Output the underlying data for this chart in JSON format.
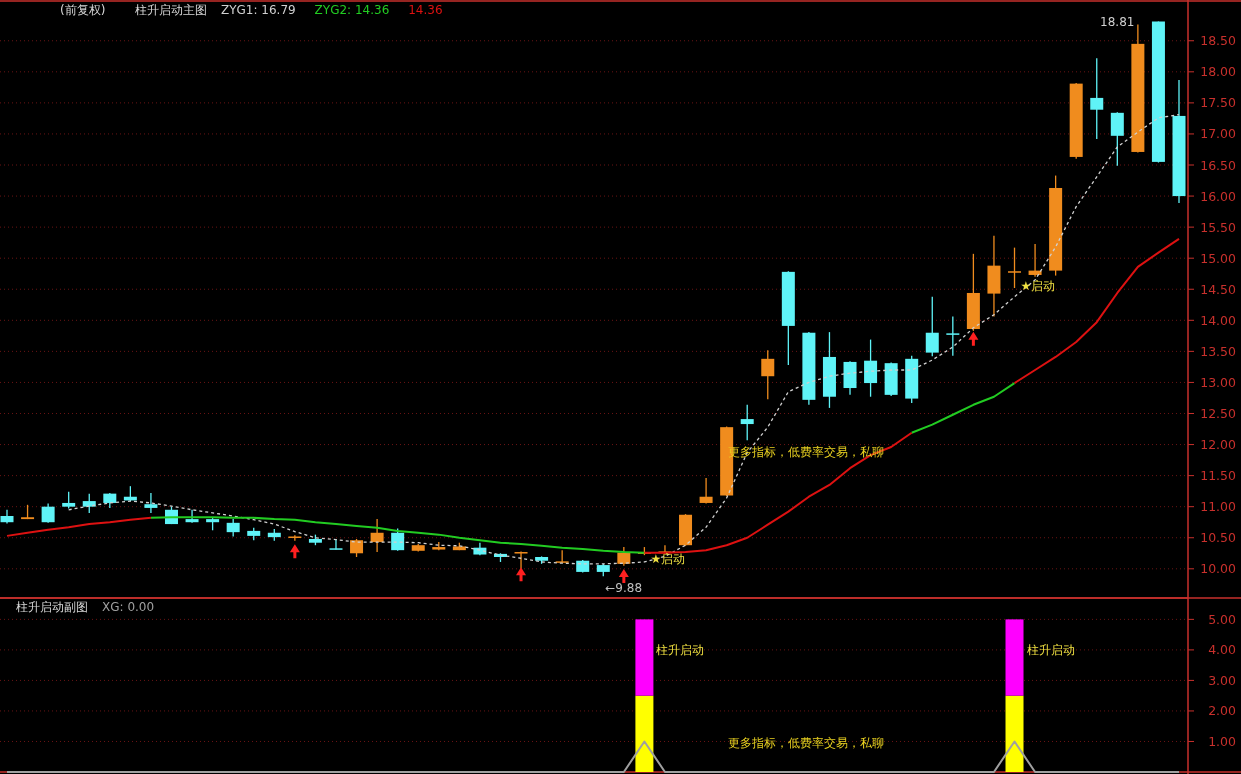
{
  "chart_data": [
    {
      "type": "candlestick",
      "title": "柱升启动主图",
      "subtitle": "(前复权)",
      "categories": [
        null,
        null,
        null,
        null,
        null,
        null,
        null,
        null,
        null,
        null,
        null,
        null,
        null,
        null,
        null,
        null,
        null,
        null,
        null,
        null,
        null,
        null,
        null,
        null,
        null,
        null,
        null,
        null,
        null,
        null,
        null,
        null,
        null,
        null,
        null,
        null,
        null,
        null,
        null,
        null,
        null,
        null,
        null,
        null,
        null,
        null,
        null,
        null,
        null,
        null,
        null,
        null,
        null,
        null,
        null,
        null,
        null,
        null
      ],
      "ohlc": [
        [
          10.85,
          10.95,
          10.73,
          10.75
        ],
        [
          10.8,
          11.03,
          10.8,
          10.83
        ],
        [
          11.0,
          11.05,
          10.74,
          10.75
        ],
        [
          11.06,
          11.24,
          10.97,
          11.0
        ],
        [
          11.09,
          11.21,
          10.9,
          11.0
        ],
        [
          11.21,
          11.22,
          10.98,
          11.06
        ],
        [
          11.16,
          11.33,
          11.09,
          11.1
        ],
        [
          11.04,
          11.22,
          10.9,
          10.98
        ],
        [
          10.95,
          11.0,
          10.72,
          10.72
        ],
        [
          10.8,
          10.95,
          10.74,
          10.75
        ],
        [
          10.8,
          10.82,
          10.62,
          10.75
        ],
        [
          10.74,
          10.8,
          10.52,
          10.59
        ],
        [
          10.61,
          10.66,
          10.46,
          10.53
        ],
        [
          10.58,
          10.64,
          10.45,
          10.51
        ],
        [
          10.5,
          10.54,
          10.45,
          10.52
        ],
        [
          10.48,
          10.55,
          10.38,
          10.42
        ],
        [
          10.33,
          10.48,
          10.31,
          10.32
        ],
        [
          10.25,
          10.48,
          10.19,
          10.46
        ],
        [
          10.43,
          10.8,
          10.27,
          10.58
        ],
        [
          10.58,
          10.65,
          10.29,
          10.3
        ],
        [
          10.29,
          10.4,
          10.28,
          10.38
        ],
        [
          10.31,
          10.43,
          10.3,
          10.35
        ],
        [
          10.3,
          10.42,
          10.3,
          10.36
        ],
        [
          10.34,
          10.42,
          10.22,
          10.23
        ],
        [
          10.24,
          10.25,
          10.11,
          10.19
        ],
        [
          10.25,
          10.28,
          10.0,
          10.27
        ],
        [
          10.19,
          10.2,
          10.08,
          10.13
        ],
        [
          10.1,
          10.3,
          10.1,
          10.12
        ],
        [
          10.13,
          10.14,
          9.94,
          9.95
        ],
        [
          10.06,
          10.08,
          9.88,
          9.95
        ],
        [
          10.08,
          10.35,
          10.05,
          10.26
        ],
        [
          10.24,
          10.35,
          10.22,
          10.27
        ],
        [
          10.25,
          10.38,
          10.24,
          10.28
        ],
        [
          10.38,
          10.88,
          10.37,
          10.87
        ],
        [
          11.06,
          11.46,
          11.05,
          11.16
        ],
        [
          11.18,
          12.29,
          11.17,
          12.28
        ],
        [
          12.41,
          12.64,
          12.07,
          12.33
        ],
        [
          13.1,
          13.52,
          12.73,
          13.38
        ],
        [
          14.78,
          14.79,
          13.28,
          13.91
        ],
        [
          13.8,
          13.81,
          12.64,
          12.72
        ],
        [
          13.41,
          13.81,
          12.59,
          12.77
        ],
        [
          13.33,
          13.34,
          12.8,
          12.91
        ],
        [
          13.35,
          13.69,
          12.77,
          12.99
        ],
        [
          13.31,
          13.32,
          12.78,
          12.8
        ],
        [
          13.38,
          13.43,
          12.67,
          12.74
        ],
        [
          13.8,
          14.38,
          13.42,
          13.48
        ],
        [
          13.79,
          14.06,
          13.43,
          13.77
        ],
        [
          13.86,
          15.07,
          13.83,
          14.44
        ],
        [
          14.43,
          15.36,
          14.06,
          14.88
        ],
        [
          14.77,
          15.17,
          14.52,
          14.79
        ],
        [
          14.73,
          15.23,
          14.7,
          14.8
        ],
        [
          14.8,
          16.33,
          14.72,
          16.13
        ],
        [
          16.63,
          17.82,
          16.6,
          17.81
        ],
        [
          17.58,
          18.22,
          16.92,
          17.39
        ],
        [
          17.34,
          17.35,
          16.49,
          16.97
        ],
        [
          16.71,
          18.76,
          16.7,
          18.45
        ],
        [
          18.81,
          18.81,
          16.54,
          16.55
        ],
        [
          17.29,
          17.87,
          15.89,
          16.0
        ]
      ],
      "colors": [
        "#5ff3f7",
        "#f08c1e",
        "#5ff3f7",
        "#5ff3f7",
        "#5ff3f7",
        "#5ff3f7",
        "#5ff3f7",
        "#5ff3f7",
        "#5ff3f7",
        "#5ff3f7",
        "#5ff3f7",
        "#5ff3f7",
        "#5ff3f7",
        "#5ff3f7",
        "#f08c1e",
        "#5ff3f7",
        "#5ff3f7",
        "#f08c1e",
        "#f08c1e",
        "#5ff3f7",
        "#f08c1e",
        "#f08c1e",
        "#f08c1e",
        "#5ff3f7",
        "#5ff3f7",
        "#f08c1e",
        "#5ff3f7",
        "#f08c1e",
        "#5ff3f7",
        "#5ff3f7",
        "#f08c1e",
        "#f08c1e",
        "#f08c1e",
        "#f08c1e",
        "#f08c1e",
        "#f08c1e",
        "#5ff3f7",
        "#f08c1e",
        "#5ff3f7",
        "#5ff3f7",
        "#5ff3f7",
        "#5ff3f7",
        "#5ff3f7",
        "#5ff3f7",
        "#5ff3f7",
        "#5ff3f7",
        "#5ff3f7",
        "#f08c1e",
        "#f08c1e",
        "#f08c1e",
        "#f08c1e",
        "#f08c1e",
        "#f08c1e",
        "#5ff3f7",
        "#5ff3f7",
        "#f08c1e",
        "#5ff3f7",
        "#5ff3f7"
      ],
      "series": [
        {
          "type": "line",
          "name": "ZYG1: 16.79",
          "color": "#d0d0d0",
          "line_style": "dashed",
          "values": [
            null,
            null,
            null,
            10.95,
            11.01,
            11.06,
            11.09,
            11.06,
            11.01,
            10.95,
            10.9,
            10.85,
            10.79,
            10.72,
            10.6,
            10.5,
            10.47,
            10.43,
            10.43,
            10.43,
            10.42,
            10.38,
            10.37,
            10.3,
            10.22,
            10.17,
            10.11,
            10.09,
            10.08,
            10.08,
            10.09,
            10.11,
            10.2,
            10.38,
            10.67,
            11.14,
            11.87,
            12.28,
            12.85,
            13.0,
            13.1,
            13.15,
            13.18,
            13.2,
            13.2,
            13.36,
            13.57,
            13.88,
            14.09,
            14.38,
            14.65,
            15.18,
            15.83,
            16.31,
            16.79,
            17.03,
            17.26,
            17.31
          ]
        },
        {
          "type": "line",
          "name": "ZYG2: 14.36",
          "color": "#22cc22",
          "line_style": "solid",
          "values": [
            null,
            null,
            null,
            null,
            null,
            null,
            null,
            10.82,
            10.83,
            10.83,
            10.83,
            10.82,
            10.82,
            10.8,
            10.79,
            10.75,
            10.72,
            10.69,
            10.66,
            10.61,
            10.58,
            10.55,
            10.5,
            10.46,
            10.42,
            10.4,
            10.37,
            10.34,
            10.32,
            10.29,
            10.27,
            10.26,
            null,
            null,
            null,
            null,
            null,
            null,
            null,
            null,
            null,
            null,
            null,
            null,
            12.19,
            12.32,
            12.48,
            12.64,
            12.77,
            12.99,
            null,
            null,
            null,
            null,
            null,
            null,
            null,
            null
          ]
        },
        {
          "type": "line",
          "name": "14.36",
          "color": "#dd1111",
          "line_style": "solid",
          "values": [
            10.53,
            10.58,
            10.63,
            10.67,
            10.72,
            10.75,
            10.79,
            10.82,
            null,
            null,
            null,
            null,
            null,
            null,
            null,
            null,
            null,
            null,
            null,
            null,
            null,
            null,
            null,
            null,
            null,
            null,
            null,
            null,
            null,
            null,
            null,
            10.26,
            10.26,
            10.27,
            10.3,
            10.38,
            10.5,
            10.71,
            10.92,
            11.16,
            11.35,
            11.62,
            11.83,
            11.96,
            12.19,
            null,
            null,
            null,
            null,
            12.99,
            13.2,
            13.41,
            13.65,
            13.97,
            14.44,
            14.86,
            15.09,
            15.31
          ]
        },
        {
          "type": "scatter",
          "color": "#ff2020",
          "marker": "triangle",
          "values": [
            null,
            null,
            null,
            null,
            null,
            null,
            null,
            null,
            null,
            null,
            null,
            null,
            null,
            null,
            10.3,
            null,
            null,
            null,
            null,
            null,
            null,
            null,
            null,
            null,
            null,
            9.93,
            null,
            null,
            null,
            null,
            9.9,
            null,
            null,
            null,
            null,
            null,
            null,
            null,
            null,
            null,
            null,
            null,
            null,
            null,
            null,
            null,
            null,
            13.72,
            null,
            null,
            null,
            null,
            null,
            null,
            null,
            null,
            null,
            null
          ]
        }
      ],
      "ylim": [
        9.53,
        19.14
      ],
      "yticks": [
        {
          "value": 10,
          "label": "10.00"
        },
        {
          "value": 10.5,
          "label": "10.50"
        },
        {
          "value": 11,
          "label": "11.00"
        },
        {
          "value": 11.5,
          "label": "11.50"
        },
        {
          "value": 12,
          "label": "12.00"
        },
        {
          "value": 12.5,
          "label": "12.50"
        },
        {
          "value": 13,
          "label": "13.00"
        },
        {
          "value": 13.5,
          "label": "13.50"
        },
        {
          "value": 14,
          "label": "14.00"
        },
        {
          "value": 14.5,
          "label": "14.50"
        },
        {
          "value": 15,
          "label": "15.00"
        },
        {
          "value": 15.5,
          "label": "15.50"
        },
        {
          "value": 16,
          "label": "16.00"
        },
        {
          "value": 16.5,
          "label": "16.50"
        },
        {
          "value": 17,
          "label": "17.00"
        },
        {
          "value": 17.5,
          "label": "17.50"
        },
        {
          "value": 18,
          "label": "18.00"
        },
        {
          "value": 18.5,
          "label": "18.50"
        }
      ],
      "grid": "y",
      "legend": "top left",
      "annotations": [
        "18.81",
        "←9.88",
        "★启动",
        "★启动",
        "更多指标，低费率交易，私聊"
      ]
    },
    {
      "type": "bar",
      "title": "柱升启动副图",
      "stacked": true,
      "categories": [
        null,
        null,
        null,
        null,
        null,
        null,
        null,
        null,
        null,
        null,
        null,
        null,
        null,
        null,
        null,
        null,
        null,
        null,
        null,
        null,
        null,
        null,
        null,
        null,
        null,
        null,
        null,
        null,
        null,
        null,
        null,
        null,
        null,
        null,
        null,
        null,
        null,
        null,
        null,
        null,
        null,
        null,
        null,
        null,
        null,
        null,
        null,
        null,
        null,
        null,
        null,
        null,
        null,
        null,
        null,
        null,
        null,
        null
      ],
      "series": [
        {
          "color": "#ffff00",
          "values": [
            null,
            null,
            null,
            null,
            null,
            null,
            null,
            null,
            null,
            null,
            null,
            null,
            null,
            null,
            null,
            null,
            null,
            null,
            null,
            null,
            null,
            null,
            null,
            null,
            null,
            null,
            null,
            null,
            null,
            null,
            null,
            2.5,
            null,
            null,
            null,
            null,
            null,
            null,
            null,
            null,
            null,
            null,
            null,
            null,
            null,
            null,
            null,
            null,
            null,
            2.5,
            null,
            null,
            null,
            null,
            null,
            null,
            null,
            null
          ]
        },
        {
          "color": "#ff00ff",
          "values": [
            null,
            null,
            null,
            null,
            null,
            null,
            null,
            null,
            null,
            null,
            null,
            null,
            null,
            null,
            null,
            null,
            null,
            null,
            null,
            null,
            null,
            null,
            null,
            null,
            null,
            null,
            null,
            null,
            null,
            null,
            null,
            2.5,
            null,
            null,
            null,
            null,
            null,
            null,
            null,
            null,
            null,
            null,
            null,
            null,
            null,
            null,
            null,
            null,
            null,
            2.5,
            null,
            null,
            null,
            null,
            null,
            null,
            null,
            null
          ]
        },
        {
          "type": "line",
          "name": "XG: 0.00",
          "color": "#a0a0a0",
          "values": [
            0,
            0,
            0,
            0,
            0,
            0,
            0,
            0,
            0,
            0,
            0,
            0,
            0,
            0,
            0,
            0,
            0,
            0,
            0,
            0,
            0,
            0,
            0,
            0,
            0,
            0,
            0,
            0,
            0,
            0,
            0,
            1,
            0,
            0,
            0,
            0,
            0,
            0,
            0,
            0,
            0,
            0,
            0,
            0,
            0,
            0,
            0,
            0,
            0,
            1,
            0,
            0,
            0,
            0,
            0,
            0,
            0,
            0
          ]
        }
      ],
      "ylim": [
        0,
        5.7
      ],
      "yticks": [
        {
          "value": 1,
          "label": "1.00"
        },
        {
          "value": 2,
          "label": "2.00"
        },
        {
          "value": 3,
          "label": "3.00"
        },
        {
          "value": 4,
          "label": "4.00"
        },
        {
          "value": 5,
          "label": "5.00"
        }
      ],
      "grid": "y",
      "legend": "top left",
      "annotations": [
        "柱升启动",
        "柱升启动",
        "更多指标，低费率交易，私聊"
      ]
    }
  ]
}
